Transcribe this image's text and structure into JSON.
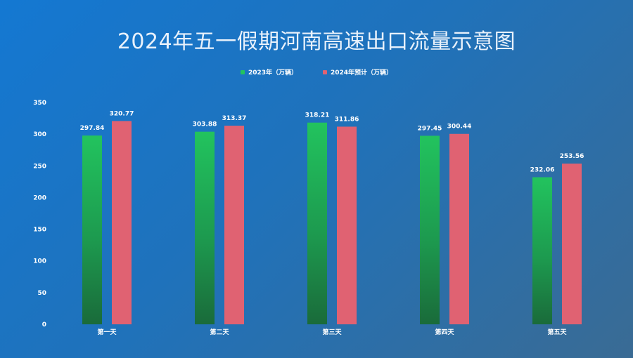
{
  "chart_data": {
    "type": "bar",
    "title": "2024年五一假期河南高速出口流量示意图",
    "categories": [
      "第一天",
      "第二天",
      "第三天",
      "第四天",
      "第五天"
    ],
    "series": [
      {
        "name": "2023年（万辆）",
        "color": "#22c35e",
        "values": [
          297.84,
          303.88,
          318.21,
          297.45,
          232.06
        ]
      },
      {
        "name": "2024年预计（万辆）",
        "color": "#e06272",
        "values": [
          320.77,
          313.37,
          311.86,
          300.44,
          253.56
        ]
      }
    ],
    "yticks": [
      0,
      50,
      100,
      150,
      200,
      250,
      300,
      350
    ],
    "ylim": [
      0,
      350
    ],
    "xlabel": "",
    "ylabel": "",
    "grid": false,
    "legend_position": "top-center"
  }
}
